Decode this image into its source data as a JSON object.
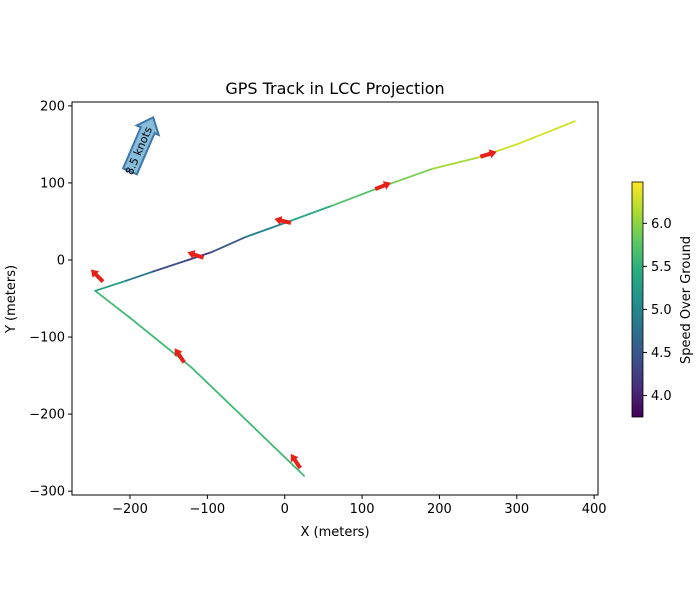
{
  "chart_data": {
    "type": "line",
    "title": "GPS Track in LCC Projection",
    "xlabel": "X (meters)",
    "ylabel": "Y (meters)",
    "xlim": [
      -275,
      405
    ],
    "ylim": [
      -305,
      205
    ],
    "xticks": [
      -200,
      -100,
      0,
      100,
      200,
      300,
      400
    ],
    "yticks": [
      -300,
      -200,
      -100,
      0,
      100,
      200
    ],
    "xtick_labels": [
      "−200",
      "−100",
      "0",
      "100",
      "200",
      "300",
      "400"
    ],
    "ytick_labels": [
      "−300",
      "−200",
      "−100",
      "0",
      "100",
      "200"
    ],
    "grid": false,
    "colormap": "viridis",
    "track": {
      "x": [
        25,
        -120,
        -200,
        -245,
        -205,
        -170,
        -125,
        -95,
        -50,
        0,
        60,
        120,
        190,
        250,
        300,
        375
      ],
      "y": [
        -280,
        -140,
        -75,
        -40,
        -27,
        -15,
        0,
        10,
        30,
        48,
        70,
        93,
        118,
        133,
        150,
        180
      ],
      "speed": [
        5.6,
        5.6,
        5.6,
        5.6,
        5.0,
        4.7,
        4.1,
        4.3,
        4.7,
        5.2,
        5.6,
        5.8,
        6.0,
        6.2,
        6.3,
        6.3
      ]
    },
    "heading_arrows": [
      {
        "x": 20,
        "y": -270,
        "dx": -6,
        "dy": 9
      },
      {
        "x": -130,
        "y": -133,
        "dx": -6,
        "dy": 9
      },
      {
        "x": -235,
        "y": -28,
        "dx": -9,
        "dy": 9
      },
      {
        "x": -105,
        "y": 3,
        "dx": -12,
        "dy": 4
      },
      {
        "x": 8,
        "y": 48,
        "dx": -12,
        "dy": 3
      },
      {
        "x": 117,
        "y": 92,
        "dx": 10,
        "dy": 4
      },
      {
        "x": 253,
        "y": 134,
        "dx": 10,
        "dy": 3
      }
    ],
    "scale_arrow": {
      "label": "8.5 knots",
      "x": -200,
      "y": 115,
      "dx": 30,
      "dy": 70,
      "color": "#87bcdb"
    },
    "colorbar": {
      "label": "Speed Over Ground",
      "min": 3.75,
      "max": 6.48,
      "ticks": [
        4.0,
        4.5,
        5.0,
        5.5,
        6.0
      ],
      "tick_labels": [
        "4.0",
        "4.5",
        "5.0",
        "5.5",
        "6.0"
      ]
    },
    "colors": {
      "arrow": "#e8201a",
      "scale_arrow_edge": "#3e78a8"
    }
  }
}
